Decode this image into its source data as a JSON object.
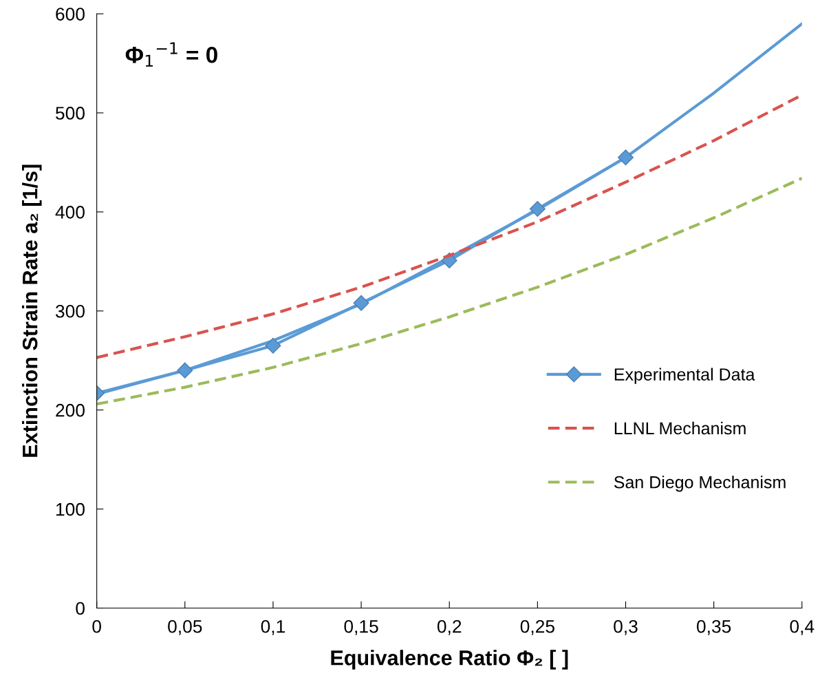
{
  "chart_data": {
    "type": "line",
    "xlabel": "Equivalence Ratio Φ₂ [ ]",
    "ylabel": "Extinction Strain Rate a₂ [1/s]",
    "annotations": [
      "Φ$_{1}$$^{−1}$ = 0"
    ],
    "xlim": [
      0,
      0.4
    ],
    "ylim": [
      0,
      600
    ],
    "xticks": [
      0,
      {
        "value": 0.05,
        "label": "0,05"
      },
      {
        "value": 0.1,
        "label": "0,1"
      },
      {
        "value": 0.15,
        "label": "0,15"
      },
      {
        "value": 0.2,
        "label": "0,2"
      },
      {
        "value": 0.25,
        "label": "0,25"
      },
      {
        "value": 0.3,
        "label": "0,3"
      },
      {
        "value": 0.35,
        "label": "0,35"
      },
      {
        "value": 0.4,
        "label": "0,4"
      }
    ],
    "yticks": [
      0,
      100,
      200,
      300,
      400,
      500,
      600
    ],
    "grid": false,
    "legend": "right",
    "series": [
      {
        "color": "#5b9bd5",
        "x": [
          0,
          0.05,
          0.1,
          0.15,
          0.2,
          0.25,
          0.3,
          0.35,
          0.4
        ],
        "values": [
          216,
          240,
          270,
          307,
          354,
          402,
          455,
          520,
          590
        ],
        "marker": "none",
        "line_style": "solid"
      },
      {
        "name": "Experimental Data",
        "color": "#5b9bd5",
        "x": [
          0,
          0.05,
          0.1,
          0.15,
          0.2,
          0.25,
          0.3
        ],
        "values": [
          217,
          240,
          265,
          308,
          351,
          403,
          455
        ],
        "marker": "diamond",
        "line_style": "solid"
      },
      {
        "name": "LLNL Mechanism",
        "color": "#d9534f",
        "x": [
          0,
          0.05,
          0.1,
          0.15,
          0.2,
          0.25,
          0.3,
          0.35,
          0.4
        ],
        "values": [
          253,
          274,
          297,
          324,
          356,
          390,
          430,
          472,
          518
        ],
        "marker": "none",
        "line_style": "dashed"
      },
      {
        "name": "San Diego Mechanism",
        "color": "#9bbb59",
        "x": [
          0,
          0.05,
          0.1,
          0.15,
          0.2,
          0.25,
          0.3,
          0.35,
          0.4
        ],
        "values": [
          206,
          223,
          243,
          267,
          294,
          324,
          357,
          394,
          434
        ],
        "marker": "none",
        "line_style": "dashed"
      }
    ]
  }
}
